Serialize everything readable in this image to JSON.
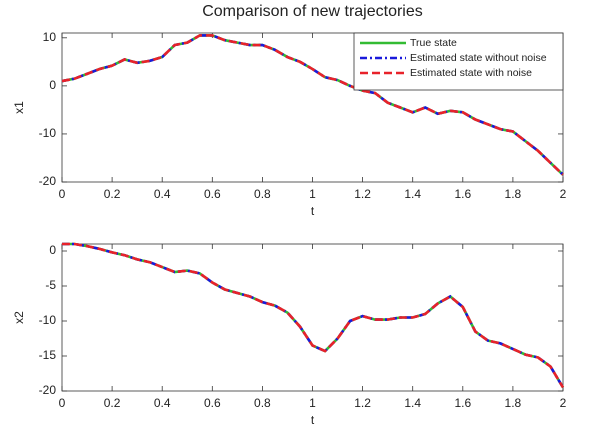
{
  "chart_data": [
    {
      "type": "line",
      "title": "Comparison of new trajectories",
      "xlabel": "t",
      "ylabel": "x1",
      "x": [
        0,
        0.05,
        0.1,
        0.15,
        0.2,
        0.25,
        0.3,
        0.35,
        0.4,
        0.45,
        0.5,
        0.55,
        0.6,
        0.65,
        0.7,
        0.75,
        0.8,
        0.85,
        0.9,
        0.95,
        1,
        1.05,
        1.1,
        1.15,
        1.2,
        1.25,
        1.3,
        1.35,
        1.4,
        1.45,
        1.5,
        1.55,
        1.6,
        1.65,
        1.7,
        1.75,
        1.8,
        1.85,
        1.9,
        1.95,
        2
      ],
      "xlim": [
        0,
        2
      ],
      "xticks": [
        0,
        0.2,
        0.4,
        0.6,
        0.8,
        1,
        1.2,
        1.4,
        1.6,
        1.8,
        2
      ],
      "ylim": [
        -20,
        11
      ],
      "yticks": [
        -20,
        -10,
        0,
        10
      ],
      "legend": "upper right",
      "series": [
        {
          "name": "True state",
          "color": "#33bb33",
          "dash": "solid",
          "values": [
            1,
            1.5,
            2.5,
            3.5,
            4.2,
            5.5,
            4.8,
            5.2,
            6,
            8.5,
            9,
            10.5,
            10.5,
            9.5,
            9,
            8.5,
            8.5,
            7.5,
            6,
            5,
            3.5,
            1.8,
            1.2,
            0,
            -1,
            -1.5,
            -3.5,
            -4.5,
            -5.5,
            -4.5,
            -5.8,
            -5.2,
            -5.5,
            -7,
            -8,
            -9,
            -9.5,
            -11.5,
            -13.5,
            -16,
            -18.5
          ]
        },
        {
          "name": "Estimated state without noise",
          "color": "#1a1adb",
          "dash": "dashdot",
          "values": [
            1,
            1.5,
            2.5,
            3.5,
            4.2,
            5.5,
            4.8,
            5.2,
            6,
            8.5,
            9,
            10.5,
            10.5,
            9.5,
            9,
            8.5,
            8.5,
            7.5,
            6,
            5,
            3.5,
            1.8,
            1.2,
            0,
            -1,
            -1.5,
            -3.5,
            -4.5,
            -5.5,
            -4.5,
            -5.8,
            -5.2,
            -5.5,
            -7,
            -8,
            -9,
            -9.5,
            -11.5,
            -13.5,
            -16,
            -18.5
          ]
        },
        {
          "name": "Estimated state with noise",
          "color": "#e8222a",
          "dash": "dashed",
          "values": [
            1,
            1.5,
            2.5,
            3.5,
            4.2,
            5.5,
            4.8,
            5.2,
            6,
            8.5,
            9,
            10.5,
            10.5,
            9.5,
            9,
            8.5,
            8.5,
            7.5,
            6,
            5,
            3.5,
            1.8,
            1.2,
            0,
            -1,
            -1.5,
            -3.5,
            -4.5,
            -5.5,
            -4.5,
            -5.8,
            -5.2,
            -5.5,
            -7,
            -8,
            -9,
            -9.5,
            -11.5,
            -13.5,
            -16,
            -18.5
          ]
        }
      ]
    },
    {
      "type": "line",
      "xlabel": "t",
      "ylabel": "x2",
      "x": [
        0,
        0.05,
        0.1,
        0.15,
        0.2,
        0.25,
        0.3,
        0.35,
        0.4,
        0.45,
        0.5,
        0.55,
        0.6,
        0.65,
        0.7,
        0.75,
        0.8,
        0.85,
        0.9,
        0.95,
        1,
        1.05,
        1.1,
        1.15,
        1.2,
        1.25,
        1.3,
        1.35,
        1.4,
        1.45,
        1.5,
        1.55,
        1.6,
        1.65,
        1.7,
        1.75,
        1.8,
        1.85,
        1.9,
        1.95,
        2
      ],
      "xlim": [
        0,
        2
      ],
      "xticks": [
        0,
        0.2,
        0.4,
        0.6,
        0.8,
        1,
        1.2,
        1.4,
        1.6,
        1.8,
        2
      ],
      "ylim": [
        -20,
        1
      ],
      "yticks": [
        -20,
        -15,
        -10,
        -5,
        0
      ],
      "series": [
        {
          "color": "#33bb33",
          "dash": "solid",
          "values": [
            1,
            1,
            0.7,
            0.3,
            -0.2,
            -0.6,
            -1.2,
            -1.6,
            -2.3,
            -3,
            -2.8,
            -3.2,
            -4.5,
            -5.5,
            -6,
            -6.5,
            -7.3,
            -7.8,
            -8.8,
            -10.8,
            -13.5,
            -14.3,
            -12.5,
            -10,
            -9.3,
            -9.8,
            -9.8,
            -9.5,
            -9.5,
            -9,
            -7.5,
            -6.5,
            -8,
            -11.5,
            -12.8,
            -13.2,
            -14,
            -14.8,
            -15.2,
            -16.5,
            -19.5
          ]
        },
        {
          "color": "#1a1adb",
          "dash": "dashdot",
          "values": [
            1,
            1,
            0.7,
            0.3,
            -0.2,
            -0.6,
            -1.2,
            -1.6,
            -2.3,
            -3,
            -2.8,
            -3.2,
            -4.5,
            -5.5,
            -6,
            -6.5,
            -7.3,
            -7.8,
            -8.8,
            -10.8,
            -13.5,
            -14.3,
            -12.5,
            -10,
            -9.3,
            -9.8,
            -9.8,
            -9.5,
            -9.5,
            -9,
            -7.5,
            -6.5,
            -8,
            -11.5,
            -12.8,
            -13.2,
            -14,
            -14.8,
            -15.2,
            -16.5,
            -19.5
          ]
        },
        {
          "color": "#e8222a",
          "dash": "dashed",
          "values": [
            1,
            1,
            0.7,
            0.3,
            -0.2,
            -0.6,
            -1.2,
            -1.6,
            -2.3,
            -3,
            -2.8,
            -3.2,
            -4.5,
            -5.5,
            -6,
            -6.5,
            -7.3,
            -7.8,
            -8.8,
            -10.8,
            -13.5,
            -14.3,
            -12.5,
            -10,
            -9.3,
            -9.8,
            -9.8,
            -9.5,
            -9.5,
            -9,
            -7.5,
            -6.5,
            -8,
            -11.5,
            -12.8,
            -13.2,
            -14,
            -14.8,
            -15.2,
            -16.5,
            -19.5
          ]
        }
      ]
    }
  ]
}
